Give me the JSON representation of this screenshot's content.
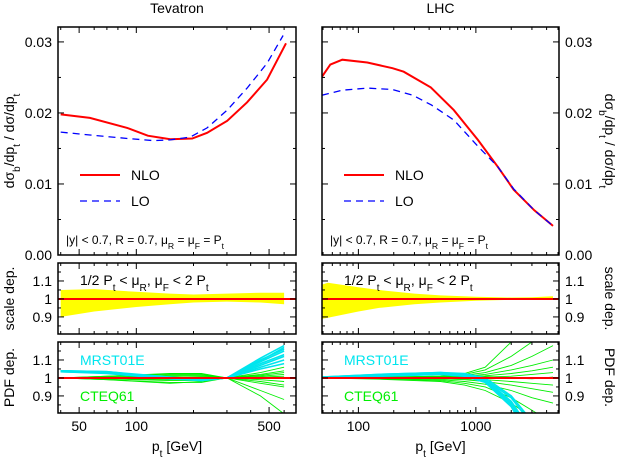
{
  "chart_data": [
    {
      "panel": "Tevatron",
      "type": "line",
      "title": "Tevatron",
      "xlabel": [
        {
          "t": "p"
        },
        {
          "t": "t",
          "sub": true
        },
        {
          "t": " [GeV]"
        }
      ],
      "ylabel": [
        {
          "t": "dσ"
        },
        {
          "t": "b",
          "sub": true
        },
        {
          "t": "/dp"
        },
        {
          "t": "t",
          "sub": true
        },
        {
          "t": " / dσ/dp"
        },
        {
          "t": "t",
          "sub": true
        }
      ],
      "xscale": "log",
      "xlim": [
        38.7,
        693
      ],
      "xticks": [
        50,
        100,
        500
      ],
      "xtick_labels": [
        "50",
        "100",
        "500"
      ],
      "ylim": [
        0,
        0.0321
      ],
      "yticks": [
        0,
        0.01,
        0.02,
        0.03
      ],
      "ytick_labels": [
        "0.00",
        "0.01",
        "0.02",
        "0.03"
      ],
      "legend": {
        "placement": "middle-left",
        "entries": [
          "NLO",
          "LO"
        ]
      },
      "annotation": [
        {
          "t": "|y| < 0.7,  R = 0.7, μ"
        },
        {
          "t": "R",
          "sub": true
        },
        {
          "t": " = μ"
        },
        {
          "t": "F",
          "sub": true
        },
        {
          "t": " = P"
        },
        {
          "t": "t",
          "sub": true
        }
      ],
      "series": [
        {
          "name": "NLO",
          "color": "#ff0000",
          "style": "solid",
          "x": [
            40,
            57,
            89.5,
            115,
            151,
            197,
            236,
            301,
            383,
            488,
            614
          ],
          "y": [
            0.0198,
            0.0193,
            0.0179,
            0.0168,
            0.0163,
            0.0164,
            0.0172,
            0.0189,
            0.0215,
            0.0247,
            0.0298
          ]
        },
        {
          "name": "LO",
          "color": "#0000ff",
          "style": "dashed",
          "x": [
            40,
            57,
            90,
            123,
            151,
            192,
            236,
            301,
            383,
            488,
            593
          ],
          "y": [
            0.0173,
            0.0169,
            0.0164,
            0.0161,
            0.0162,
            0.0166,
            0.0179,
            0.0204,
            0.0235,
            0.027,
            0.0309
          ]
        }
      ],
      "scale_panel": {
        "ylabel": "scale dep.",
        "ylim": [
          0.805,
          1.2
        ],
        "yticks": [
          0.9,
          1,
          1.1
        ],
        "ytick_labels": [
          "0.9",
          "1",
          "1.1"
        ],
        "note": [
          {
            "t": "1/2 P"
          },
          {
            "t": "t",
            "sub": true
          },
          {
            "t": " < μ"
          },
          {
            "t": "R",
            "sub": true
          },
          {
            "t": ", μ"
          },
          {
            "t": "F",
            "sub": true
          },
          {
            "t": " < 2 P"
          },
          {
            "t": "t",
            "sub": true
          }
        ],
        "band_color": "#ffff00",
        "line_color": "#ff0000",
        "x": [
          40,
          60,
          100,
          150,
          200,
          300,
          450,
          600
        ],
        "upper": [
          1.05,
          1.055,
          1.04,
          1.03,
          1.025,
          1.03,
          1.035,
          1.035
        ],
        "lower": [
          0.9,
          0.93,
          0.955,
          0.97,
          0.98,
          0.985,
          0.98,
          0.97
        ]
      },
      "pdf_panel": {
        "ylabel": "PDF dep.",
        "ylim": [
          0.805,
          1.2
        ],
        "yticks": [
          0.9,
          1,
          1.1
        ],
        "ytick_labels": [
          "0.9",
          "1",
          "1.1"
        ],
        "x": [
          40,
          70,
          150,
          220,
          300,
          450,
          600
        ],
        "sets": [
          {
            "name": "MRST01E",
            "color": "#00e5ee",
            "curves": [
              [
                1.04,
                1.035,
                1.0,
                0.985,
                1.0,
                1.11,
                1.18
              ],
              [
                1.04,
                1.03,
                0.995,
                0.99,
                1.0,
                1.1,
                1.16
              ],
              [
                1.035,
                1.03,
                1.0,
                0.99,
                1.0,
                1.09,
                1.15
              ],
              [
                1.04,
                1.035,
                1.005,
                0.992,
                1.0,
                1.08,
                1.13
              ],
              [
                1.035,
                1.025,
                0.995,
                0.985,
                1.0,
                1.07,
                1.12
              ],
              [
                1.04,
                1.03,
                1.0,
                0.995,
                1.0,
                1.06,
                1.1
              ],
              [
                1.035,
                1.03,
                1.0,
                0.99,
                1.0,
                1.095,
                1.17
              ],
              [
                1.04,
                1.03,
                0.998,
                0.988,
                1.0,
                1.05,
                1.08
              ]
            ]
          },
          {
            "name": "CTEQ61",
            "color": "#00ee00",
            "curves": [
              [
                1.0,
                1.01,
                1.02,
                1.02,
                1.0,
                0.93,
                0.88
              ],
              [
                1.0,
                1.01,
                1.025,
                1.025,
                1.0,
                0.9,
                0.8
              ],
              [
                1.0,
                0.99,
                0.975,
                0.975,
                1.0,
                1.02,
                1.04
              ],
              [
                1.0,
                1.005,
                1.01,
                1.01,
                1.0,
                1.01,
                1.02
              ],
              [
                1.0,
                0.995,
                0.985,
                0.985,
                1.0,
                1.03,
                1.06
              ],
              [
                1.0,
                1.0,
                1.0,
                1.005,
                1.0,
                0.98,
                0.96
              ],
              [
                1.0,
                1.005,
                1.015,
                1.015,
                1.0,
                0.97,
                0.95
              ],
              [
                1.0,
                0.995,
                0.99,
                0.99,
                1.0,
                0.99,
                0.98
              ],
              [
                1.0,
                1.0,
                1.005,
                1.0,
                1.0,
                1.015,
                1.03
              ],
              [
                1.0,
                0.99,
                0.97,
                0.98,
                1.0,
                1.005,
                1.01
              ]
            ]
          }
        ],
        "line_color": "#ff0000"
      }
    },
    {
      "panel": "LHC",
      "type": "line",
      "title": "LHC",
      "xlabel": [
        {
          "t": "p"
        },
        {
          "t": "t",
          "sub": true
        },
        {
          "t": " [GeV]"
        }
      ],
      "ylabel": [
        {
          "t": "dσ"
        },
        {
          "t": "b",
          "sub": true
        },
        {
          "t": "/dp"
        },
        {
          "t": "t",
          "sub": true
        },
        {
          "t": " / dσ/dp"
        },
        {
          "t": "t",
          "sub": true
        }
      ],
      "xscale": "log",
      "xlim": [
        49,
        5100
      ],
      "xticks": [
        100,
        1000
      ],
      "xtick_labels": [
        "100",
        "1000"
      ],
      "ylim": [
        0,
        0.0321
      ],
      "yticks": [
        0,
        0.01,
        0.02,
        0.03
      ],
      "ytick_labels": [
        "0.00",
        "0.01",
        "0.02",
        "0.03"
      ],
      "legend": {
        "placement": "middle-left",
        "entries": [
          "NLO",
          "LO"
        ]
      },
      "annotation": [
        {
          "t": "|y| < 0.7,  R = 0.7, μ"
        },
        {
          "t": "R",
          "sub": true
        },
        {
          "t": " = μ"
        },
        {
          "t": "F",
          "sub": true
        },
        {
          "t": " = P"
        },
        {
          "t": "t",
          "sub": true
        }
      ],
      "series": [
        {
          "name": "NLO",
          "color": "#ff0000",
          "style": "solid",
          "x": [
            49,
            57.6,
            73,
            119,
            195,
            243,
            413,
            649,
            1040,
            1540,
            2100,
            3140,
            4530
          ],
          "y": [
            0.0251,
            0.0268,
            0.0275,
            0.0271,
            0.0263,
            0.0258,
            0.0236,
            0.0204,
            0.0162,
            0.0124,
            0.0092,
            0.0063,
            0.0041
          ]
        },
        {
          "name": "LO",
          "color": "#0000ff",
          "style": "dashed",
          "x": [
            49,
            73,
            119,
            195,
            290,
            420,
            649,
            1040,
            1540,
            2100,
            3140,
            4530
          ],
          "y": [
            0.0225,
            0.0232,
            0.0235,
            0.0233,
            0.0225,
            0.0211,
            0.019,
            0.0153,
            0.0124,
            0.0093,
            0.0063,
            0.0041
          ]
        }
      ],
      "scale_panel": {
        "ylabel": "scale dep.",
        "ylim": [
          0.805,
          1.2
        ],
        "yticks": [
          0.9,
          1,
          1.1
        ],
        "ytick_labels": [
          "0.9",
          "1",
          "1.1"
        ],
        "note": [
          {
            "t": "1/2 P"
          },
          {
            "t": "t",
            "sub": true
          },
          {
            "t": " < μ"
          },
          {
            "t": "R",
            "sub": true
          },
          {
            "t": ", μ"
          },
          {
            "t": "F",
            "sub": true
          },
          {
            "t": " < 2 P"
          },
          {
            "t": "t",
            "sub": true
          }
        ],
        "band_color": "#ffff00",
        "line_color": "#ff0000",
        "x": [
          49,
          55,
          100,
          150,
          300,
          500,
          1000,
          2000,
          3000,
          4530
        ],
        "upper": [
          1.08,
          1.09,
          1.065,
          1.05,
          1.03,
          1.02,
          1.012,
          1.008,
          1.01,
          1.015
        ],
        "lower": [
          0.89,
          0.895,
          0.93,
          0.95,
          0.97,
          0.98,
          0.99,
          0.995,
          0.995,
          0.995
        ]
      },
      "pdf_panel": {
        "ylabel": "PDF dep.",
        "ylim": [
          0.805,
          1.2
        ],
        "yticks": [
          0.9,
          1,
          1.1
        ],
        "ytick_labels": [
          "0.9",
          "1",
          "1.1"
        ],
        "x": [
          49,
          150,
          500,
          800,
          1200,
          2000,
          3000,
          4530
        ],
        "sets": [
          {
            "name": "MRST01E",
            "color": "#00e5ee",
            "curves": [
              [
                1.0,
                1.015,
                1.025,
                1.02,
                0.99,
                0.87,
                0.7,
                0.5
              ],
              [
                1.0,
                1.015,
                1.025,
                1.015,
                0.98,
                0.85,
                0.66,
                0.45
              ],
              [
                1.005,
                1.02,
                1.03,
                1.02,
                0.99,
                0.89,
                0.74,
                0.55
              ],
              [
                1.0,
                1.01,
                1.02,
                1.01,
                0.975,
                0.84,
                0.64,
                0.42
              ],
              [
                1.005,
                1.02,
                1.03,
                1.025,
                1.0,
                0.9,
                0.76,
                0.58
              ],
              [
                1.0,
                1.012,
                1.022,
                1.012,
                0.985,
                0.86,
                0.68,
                0.48
              ]
            ]
          },
          {
            "name": "CTEQ61",
            "color": "#00ee00",
            "curves": [
              [
                1.0,
                1.005,
                1.01,
                1.025,
                1.06,
                1.2,
                1.35,
                1.5
              ],
              [
                1.0,
                1.005,
                1.01,
                1.02,
                1.045,
                1.12,
                1.2,
                1.3
              ],
              [
                1.0,
                1.002,
                1.008,
                1.015,
                1.03,
                1.07,
                1.12,
                1.18
              ],
              [
                1.0,
                1.0,
                1.005,
                1.01,
                1.02,
                1.045,
                1.07,
                1.1
              ],
              [
                1.0,
                1.0,
                1.003,
                1.007,
                1.012,
                1.025,
                1.04,
                1.06
              ],
              [
                1.0,
                1.0,
                1.0,
                1.002,
                1.005,
                1.01,
                1.02,
                1.03
              ],
              [
                1.0,
                1.0,
                0.998,
                0.995,
                0.99,
                0.98,
                0.97,
                0.96
              ],
              [
                1.0,
                1.0,
                0.995,
                0.99,
                0.98,
                0.96,
                0.94,
                0.92
              ],
              [
                1.0,
                0.998,
                0.99,
                0.98,
                0.965,
                0.93,
                0.89,
                0.86
              ],
              [
                1.0,
                0.995,
                0.985,
                0.97,
                0.95,
                0.89,
                0.82,
                0.75
              ],
              [
                1.0,
                0.993,
                0.98,
                0.96,
                0.93,
                0.86,
                0.78,
                0.68
              ],
              [
                1.0,
                1.0,
                1.0,
                1.005,
                1.008,
                1.0,
                0.995,
                1.005
              ]
            ]
          }
        ],
        "line_color": "#ff0000"
      }
    }
  ]
}
